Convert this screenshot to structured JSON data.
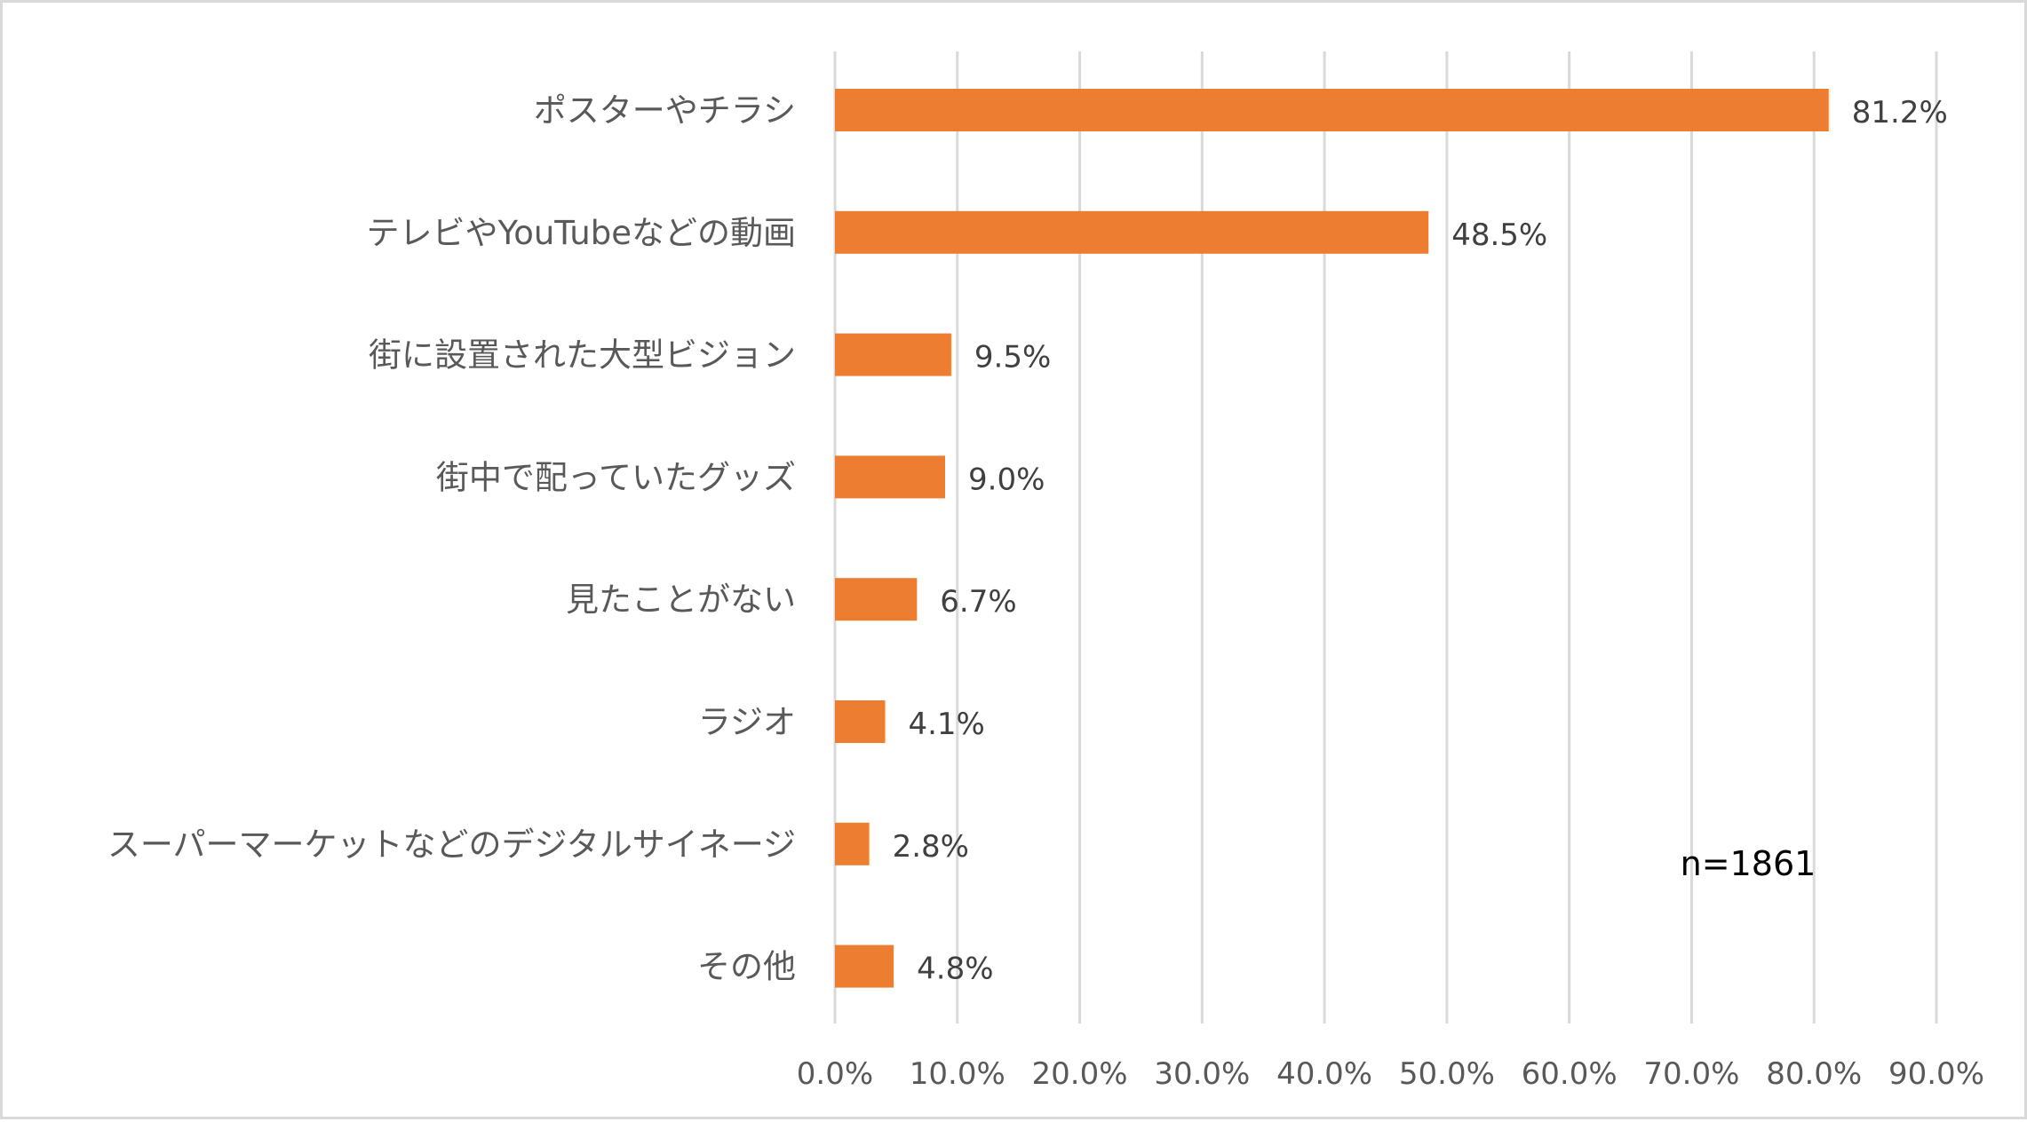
{
  "chart_data": {
    "type": "bar",
    "orientation": "horizontal",
    "categories": [
      "ポスターやチラシ",
      "テレビやYouTubeなどの動画",
      "街に設置された大型ビジョン",
      "街中で配っていたグッズ",
      "見たことがない",
      "ラジオ",
      "スーパーマーケットなどのデジタルサイネージ",
      "その他"
    ],
    "values": [
      81.2,
      48.5,
      9.5,
      9.0,
      6.7,
      4.1,
      2.8,
      4.8
    ],
    "data_labels": [
      "81.2%",
      "48.5%",
      "9.5%",
      "9.0%",
      "6.7%",
      "4.1%",
      "2.8%",
      "4.8%"
    ],
    "x_ticks": [
      "0.0%",
      "10.0%",
      "20.0%",
      "30.0%",
      "40.0%",
      "50.0%",
      "60.0%",
      "70.0%",
      "80.0%",
      "90.0%"
    ],
    "xlim": [
      0,
      90
    ],
    "grid": true,
    "legend": "none",
    "bar_color": "#ed7d31",
    "annotation": "n=1861"
  }
}
